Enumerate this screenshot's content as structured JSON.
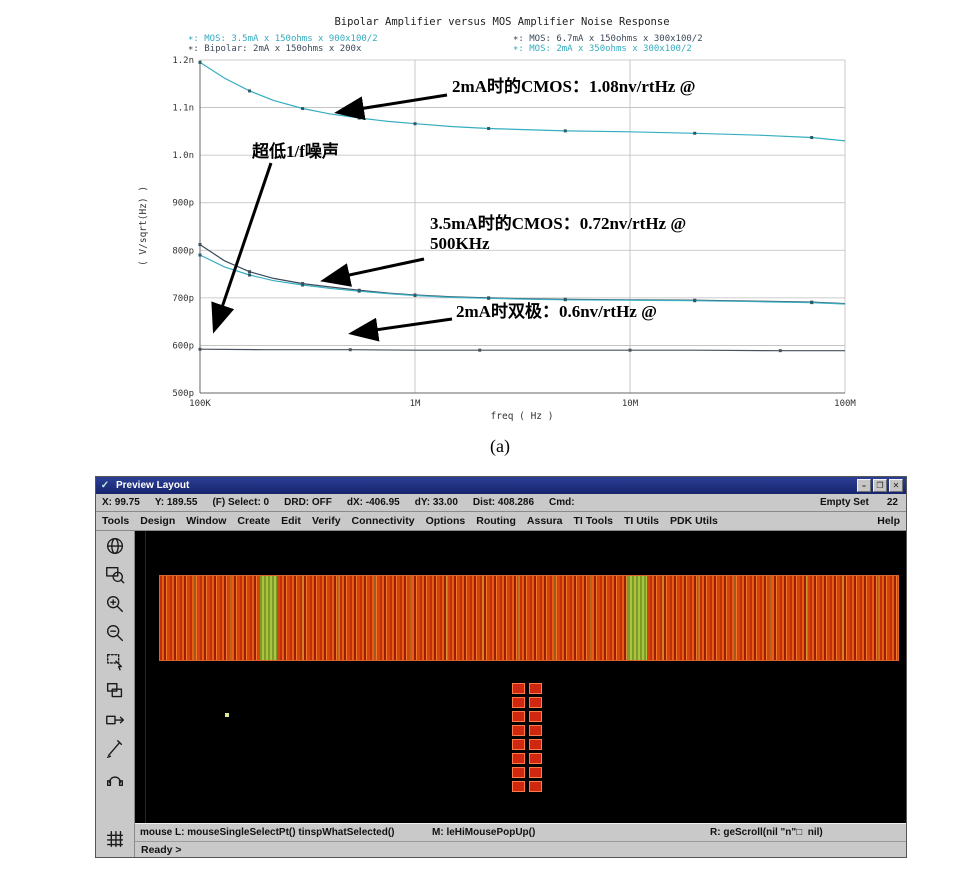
{
  "figure_label": "(a)",
  "chart": {
    "title": "Bipolar Amplifier versus MOS Amplifier Noise Response",
    "xlabel": "freq ( Hz )",
    "ylabel": "( V/sqrt(Hz) )",
    "legend_left": [
      {
        "label": "∗: MOS: 3.5mA x 150ohms x 900x100/2",
        "color": "#35aec0"
      },
      {
        "label": "∗: Bipolar: 2mA x 150ohms x 200x",
        "color": "#3c4a5a"
      }
    ],
    "legend_right": [
      {
        "label": "∗: MOS: 6.7mA x 150ohms x 300x100/2",
        "color": "#3c4a5a"
      },
      {
        "label": "∗: MOS: 2mA x 350ohms x 300x100/2",
        "color": "#35aec0"
      }
    ]
  },
  "chart_data": {
    "type": "line",
    "title": "Bipolar Amplifier versus MOS Amplifier Noise Response",
    "xlabel": "freq ( Hz )",
    "ylabel": "( V/sqrt(Hz) )",
    "x_scale": "log",
    "xlim": [
      100000,
      100000000
    ],
    "ylim": [
      0.5,
      1.2
    ],
    "y_unit": "nV/rtHz",
    "grid": true,
    "x_ticks": [
      {
        "value": 100000,
        "label": "100K"
      },
      {
        "value": 1000000,
        "label": "1M"
      },
      {
        "value": 10000000,
        "label": "10M"
      },
      {
        "value": 100000000,
        "label": "100M"
      }
    ],
    "y_ticks": [
      {
        "value": 1.2,
        "label": "1.2n"
      },
      {
        "value": 1.1,
        "label": "1.1n"
      },
      {
        "value": 1.0,
        "label": "1.0n"
      },
      {
        "value": 0.9,
        "label": "900p"
      },
      {
        "value": 0.8,
        "label": "800p"
      },
      {
        "value": 0.7,
        "label": "700p"
      },
      {
        "value": 0.6,
        "label": "600p"
      },
      {
        "value": 0.5,
        "label": "500p"
      }
    ],
    "series": [
      {
        "name": "MOS: 2mA x 350ohms x 300x100/2",
        "color": "#35aec0",
        "marker": "#2b5a68",
        "points": [
          [
            100000,
            1.195
          ],
          [
            130000,
            1.162
          ],
          [
            170000,
            1.135
          ],
          [
            220000,
            1.115
          ],
          [
            300000,
            1.098
          ],
          [
            400000,
            1.087
          ],
          [
            550000,
            1.078
          ],
          [
            750000,
            1.071
          ],
          [
            1000000,
            1.066
          ],
          [
            1500000,
            1.06
          ],
          [
            2200000,
            1.056
          ],
          [
            3500000,
            1.053
          ],
          [
            5000000,
            1.051
          ],
          [
            10000000,
            1.049
          ],
          [
            20000000,
            1.046
          ],
          [
            40000000,
            1.042
          ],
          [
            70000000,
            1.037
          ],
          [
            100000000,
            1.03
          ]
        ]
      },
      {
        "name": "MOS: 6.7mA x 150ohms x 300x100/2",
        "color": "#3c4a5a",
        "marker": "#3c4a5a",
        "points": [
          [
            100000,
            0.812
          ],
          [
            130000,
            0.778
          ],
          [
            170000,
            0.755
          ],
          [
            220000,
            0.741
          ],
          [
            300000,
            0.73
          ],
          [
            400000,
            0.723
          ],
          [
            550000,
            0.716
          ],
          [
            750000,
            0.71
          ],
          [
            1000000,
            0.706
          ],
          [
            1500000,
            0.702
          ],
          [
            2200000,
            0.7
          ],
          [
            3500000,
            0.698
          ],
          [
            5000000,
            0.697
          ],
          [
            10000000,
            0.696
          ],
          [
            20000000,
            0.695
          ],
          [
            40000000,
            0.693
          ],
          [
            70000000,
            0.691
          ],
          [
            100000000,
            0.688
          ]
        ]
      },
      {
        "name": "MOS: 3.5mA x 150ohms x 900x100/2",
        "color": "#35aec0",
        "marker": "#2b5a68",
        "points": [
          [
            100000,
            0.79
          ],
          [
            130000,
            0.765
          ],
          [
            170000,
            0.748
          ],
          [
            220000,
            0.736
          ],
          [
            300000,
            0.727
          ],
          [
            400000,
            0.72
          ],
          [
            550000,
            0.714
          ],
          [
            750000,
            0.709
          ],
          [
            1000000,
            0.705
          ],
          [
            1500000,
            0.701
          ],
          [
            2200000,
            0.699
          ],
          [
            3500000,
            0.697
          ],
          [
            5000000,
            0.696
          ],
          [
            10000000,
            0.695
          ],
          [
            20000000,
            0.694
          ],
          [
            40000000,
            0.692
          ],
          [
            70000000,
            0.69
          ],
          [
            100000000,
            0.687
          ]
        ]
      },
      {
        "name": "Bipolar: 2mA x 150ohms x 200x",
        "color": "#49525e",
        "marker": "#49525e",
        "points": [
          [
            100000,
            0.592
          ],
          [
            200000,
            0.591
          ],
          [
            500000,
            0.591
          ],
          [
            1000000,
            0.59
          ],
          [
            2000000,
            0.59
          ],
          [
            5000000,
            0.59
          ],
          [
            10000000,
            0.59
          ],
          [
            20000000,
            0.59
          ],
          [
            50000000,
            0.589
          ],
          [
            100000000,
            0.589
          ]
        ]
      }
    ]
  },
  "annotations": [
    {
      "text": "2mA时的CMOS：1.08nv/rtHz @"
    },
    {
      "text": "超低1/f噪声"
    },
    {
      "text": "3.5mA时的CMOS：0.72nv/rtHz @",
      "text2": "500KHz"
    },
    {
      "text": "2mA时双极：0.6nv/rtHz @"
    }
  ],
  "window": {
    "title": "Preview Layout",
    "title_icon": "✓",
    "controls": {
      "minimize": "–",
      "maximize": "❐",
      "close": "✕"
    },
    "status_fields": [
      "X: 99.75",
      "Y: 189.55",
      "(F) Select: 0",
      "DRD: OFF",
      "dX: -406.95",
      "dY: 33.00",
      "Dist: 408.286",
      "Cmd:"
    ],
    "status_right": [
      "Empty Set",
      "22"
    ],
    "menus": [
      "Tools",
      "Design",
      "Window",
      "Create",
      "Edit",
      "Verify",
      "Connectivity",
      "Options",
      "Routing",
      "Assura",
      "TI Tools",
      "TI Utils",
      "PDK Utils"
    ],
    "menu_right": "Help",
    "toolbar_icons": [
      "world-icon",
      "zoom-fit-icon",
      "zoom-in-icon",
      "zoom-out-icon",
      "select-area-icon",
      "copy-icon",
      "stretch-icon",
      "pencil-icon",
      "probe-icon",
      "grid-icon"
    ],
    "canvas": {
      "block_rows": 8,
      "block_cols": 2
    },
    "mouse_bindings": {
      "left": "mouse L: mouseSingleSelectPt() tinspWhatSelected()",
      "middle": "M: leHiMousePopUp()",
      "right": "R: geScroll(nil \"n\"□  nil)"
    },
    "prompt": "Ready >"
  }
}
